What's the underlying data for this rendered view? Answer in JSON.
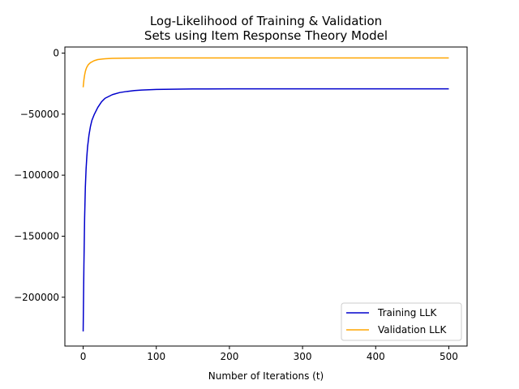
{
  "chart_data": {
    "type": "line",
    "title_lines": [
      "Log-Likelihood of Training & Validation",
      "Sets using Item Response Theory Model"
    ],
    "xlabel": "Number of Iterations (t)",
    "ylabel": "",
    "xlim": [
      -25,
      525
    ],
    "ylim": [
      -240000,
      5000
    ],
    "xticks": [
      0,
      100,
      200,
      300,
      400,
      500
    ],
    "yticks": [
      0,
      -50000,
      -100000,
      -150000,
      -200000
    ],
    "ytick_labels": [
      "0",
      "−50000",
      "−100000",
      "−150000",
      "−200000"
    ],
    "grid": false,
    "legend_position": "lower right",
    "series": [
      {
        "name": "Training LLK",
        "color": "#0000cc",
        "points": [
          [
            0,
            -228000
          ],
          [
            1,
            -175000
          ],
          [
            2,
            -135000
          ],
          [
            3,
            -110000
          ],
          [
            4,
            -95000
          ],
          [
            5,
            -85000
          ],
          [
            6,
            -77000
          ],
          [
            8,
            -67000
          ],
          [
            10,
            -60000
          ],
          [
            12,
            -55000
          ],
          [
            15,
            -50500
          ],
          [
            20,
            -44500
          ],
          [
            25,
            -40000
          ],
          [
            30,
            -37000
          ],
          [
            40,
            -34000
          ],
          [
            50,
            -32300
          ],
          [
            60,
            -31400
          ],
          [
            70,
            -30700
          ],
          [
            80,
            -30300
          ],
          [
            100,
            -29800
          ],
          [
            120,
            -29600
          ],
          [
            150,
            -29400
          ],
          [
            200,
            -29300
          ],
          [
            300,
            -29300
          ],
          [
            400,
            -29300
          ],
          [
            500,
            -29300
          ]
        ]
      },
      {
        "name": "Validation LLK",
        "color": "#ffa500",
        "points": [
          [
            0,
            -28000
          ],
          [
            1,
            -22000
          ],
          [
            2,
            -18000
          ],
          [
            3,
            -15000
          ],
          [
            4,
            -13000
          ],
          [
            5,
            -11500
          ],
          [
            7,
            -9500
          ],
          [
            10,
            -7800
          ],
          [
            15,
            -6200
          ],
          [
            20,
            -5300
          ],
          [
            30,
            -4600
          ],
          [
            40,
            -4300
          ],
          [
            60,
            -4100
          ],
          [
            100,
            -4000
          ],
          [
            200,
            -3950
          ],
          [
            300,
            -3950
          ],
          [
            400,
            -3950
          ],
          [
            500,
            -3950
          ]
        ]
      }
    ]
  }
}
